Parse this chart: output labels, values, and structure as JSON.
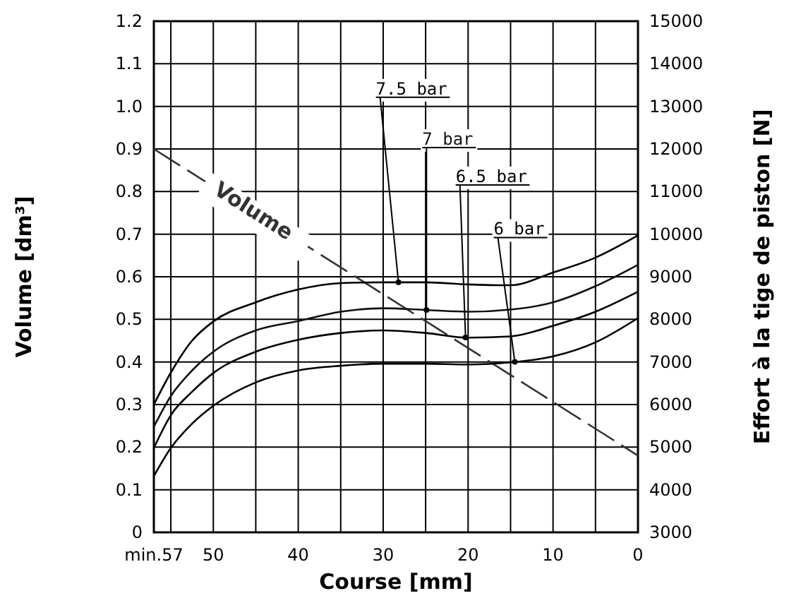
{
  "chart_data": {
    "type": "line",
    "xlabel": "Course [mm]",
    "ylabel": "Volume [dm³]",
    "y2label": "Effort à la tige de piston [N]",
    "x": [
      57,
      55,
      52.5,
      50,
      45,
      40,
      35,
      30,
      25,
      20,
      15,
      10,
      5,
      0
    ],
    "xlim": [
      57,
      0
    ],
    "xticks": [
      {
        "value": 57,
        "label": "min.57"
      },
      {
        "value": 55,
        "label": null
      },
      50,
      {
        "value": 45,
        "label": null
      },
      40,
      {
        "value": 35,
        "label": null
      },
      30,
      {
        "value": 25,
        "label": null
      },
      20,
      {
        "value": 15,
        "label": null
      },
      10,
      {
        "value": 5,
        "label": null
      },
      0
    ],
    "ylim": [
      0,
      1.2
    ],
    "yticks": [
      {
        "value": 0,
        "label": "0"
      },
      0.1,
      0.2,
      0.3,
      0.4,
      0.5,
      0.6,
      0.7,
      0.8,
      0.9,
      {
        "value": 1,
        "label": "1.0"
      },
      1.1,
      1.2
    ],
    "y2lim": [
      3000,
      15000
    ],
    "y2ticks": [
      3000,
      4000,
      5000,
      6000,
      7000,
      8000,
      9000,
      10000,
      11000,
      12000,
      13000,
      14000,
      15000
    ],
    "grid": true,
    "legend": false,
    "marker": "none",
    "series": [
      {
        "name": "Volume",
        "color": "#333333",
        "x": [
          57,
          0
        ],
        "values": [
          0.9,
          0.18
        ],
        "line_style": "dashed"
      },
      {
        "name": "7.5 bar",
        "color": "#000000",
        "axis": "y2",
        "line_style": "solid",
        "values": [
          6000,
          6750,
          7500,
          7950,
          8400,
          8700,
          8850,
          8870,
          8870,
          8820,
          8800,
          9100,
          9450,
          9970
        ]
      },
      {
        "name": "7 bar",
        "color": "#111111",
        "axis": "y2",
        "line_style": "solid",
        "values": [
          5480,
          6200,
          6800,
          7240,
          7740,
          7960,
          8180,
          8260,
          8220,
          8180,
          8230,
          8400,
          8780,
          9280
        ]
      },
      {
        "name": "6.5 bar",
        "color": "#000000",
        "axis": "y2",
        "line_style": "solid",
        "values": [
          4980,
          5750,
          6300,
          6740,
          7240,
          7520,
          7680,
          7740,
          7680,
          7570,
          7600,
          7850,
          8180,
          8650
        ]
      },
      {
        "name": "6 bar",
        "color": "#000000",
        "axis": "y2",
        "line_style": "solid",
        "values": [
          4320,
          4980,
          5550,
          5970,
          6520,
          6800,
          6910,
          6960,
          6960,
          6940,
          6990,
          7130,
          7460,
          8030
        ]
      }
    ]
  }
}
